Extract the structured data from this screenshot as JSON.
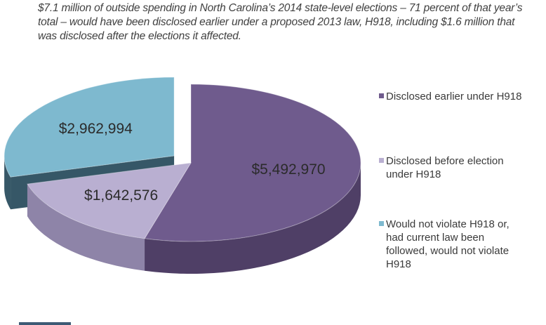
{
  "caption": "$7.1 million of outside spending in North Carolina’s 2014 state-level elections – 71 percent of that year’s total – would have been disclosed earlier under a proposed 2013 law, H918, including $1.6 million that was disclosed after the elections it affected.",
  "chart_data": {
    "type": "pie",
    "title": "",
    "series": [
      {
        "name": "Disclosed earlier under H918",
        "value": 5492970,
        "label": "$5,492,970",
        "color": "#6f5b8d",
        "color_dark": "#4f3f66"
      },
      {
        "name": "Disclosed before election under H918",
        "value": 1642576,
        "label": "$1,642,576",
        "color": "#b9afd1",
        "color_dark": "#8e84a8"
      },
      {
        "name": "Would not violate H918 or, had current law been followed, would not violate H918",
        "value": 2962994,
        "label": "$2,962,994",
        "color": "#7eb9cf",
        "color_dark": "#365767"
      }
    ],
    "exploded": "Would not violate H918 or, had current law been followed, would not violate H918",
    "legend_position": "right"
  },
  "legend": [
    {
      "text": "Disclosed earlier under H918",
      "color": "#6f5b8d"
    },
    {
      "text": "Disclosed before election under H918",
      "color": "#b9afd1"
    },
    {
      "text": "Would not violate H918 or, had current law been followed, would not violate H918",
      "color": "#7eb9cf"
    }
  ]
}
